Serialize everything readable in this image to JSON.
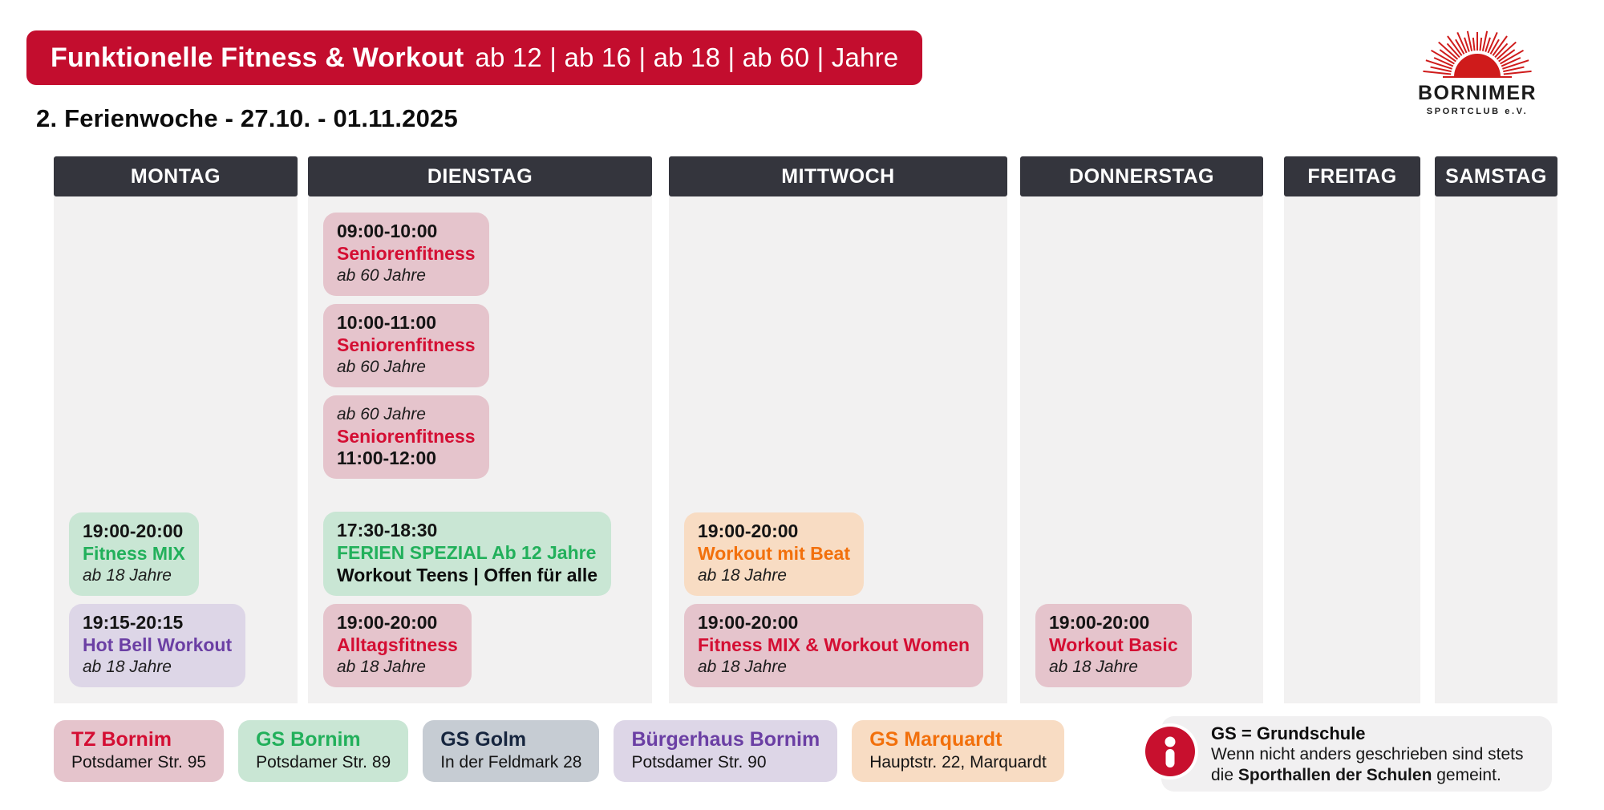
{
  "banner": {
    "title": "Funktionelle Fitness & Workout",
    "ages": "ab 12 | ab 16 | ab 18 | ab 60 | Jahre"
  },
  "subtitle": "2. Ferienwoche  - 27.10. - 01.11.2025",
  "logo": {
    "name": "BORNIMER",
    "subname": "SPORTCLUB e.V."
  },
  "colors": {
    "banner_red": "#c30d2e",
    "day_header_bg": "#34353d",
    "column_bg": "#f2f1f1",
    "info_box_bg": "#f1f0f1",
    "info_red": "#c8102e",
    "logo_red": "#cf1b1b",
    "pink": "#e5c4cc",
    "green": "#c9e6d4",
    "lavender": "#ddd6e7",
    "peach": "#f8dcc3",
    "gray": "#c6ccd3",
    "red_text": "#d40e33",
    "green_text": "#22b05b",
    "purple_text": "#6b3fa4",
    "orange_text": "#f2700c",
    "navy_text": "#17263f"
  },
  "days": [
    {
      "label": "MONTAG",
      "morning": [],
      "evening": [
        {
          "card_color": "green",
          "lines": [
            {
              "text": "19:00-20:00",
              "style": "time"
            },
            {
              "text": "Fitness MIX",
              "style": "title",
              "color": "green"
            },
            {
              "text": "ab 18 Jahre",
              "style": "sub"
            }
          ]
        },
        {
          "card_color": "lavender",
          "lines": [
            {
              "text": "19:15-20:15",
              "style": "time"
            },
            {
              "text": "Hot Bell Workout",
              "style": "title",
              "color": "purple"
            },
            {
              "text": "ab 18 Jahre",
              "style": "sub"
            }
          ]
        }
      ]
    },
    {
      "label": "DIENSTAG",
      "morning": [
        {
          "card_color": "pink",
          "lines": [
            {
              "text": "09:00-10:00",
              "style": "time"
            },
            {
              "text": "Seniorenfitness",
              "style": "title",
              "color": "red"
            },
            {
              "text": "ab 60 Jahre",
              "style": "sub"
            }
          ]
        },
        {
          "card_color": "pink",
          "lines": [
            {
              "text": "10:00-11:00",
              "style": "time"
            },
            {
              "text": "Seniorenfitness",
              "style": "title",
              "color": "red"
            },
            {
              "text": "ab 60 Jahre",
              "style": "sub"
            }
          ]
        },
        {
          "card_color": "pink",
          "lines": [
            {
              "text": "ab 60 Jahre",
              "style": "sub"
            },
            {
              "text": "Seniorenfitness",
              "style": "title",
              "color": "red"
            },
            {
              "text": "11:00-12:00",
              "style": "time"
            }
          ]
        }
      ],
      "evening": [
        {
          "card_color": "green",
          "lines": [
            {
              "text": "17:30-18:30",
              "style": "time"
            },
            {
              "text": "FERIEN SPEZIAL Ab 12 Jahre",
              "style": "title",
              "color": "green"
            },
            {
              "text": "Workout Teens | Offen für alle",
              "style": "bold"
            }
          ]
        },
        {
          "card_color": "pink",
          "lines": [
            {
              "text": "19:00-20:00",
              "style": "time"
            },
            {
              "text": "Alltagsfitness",
              "style": "title",
              "color": "red"
            },
            {
              "text": "ab 18 Jahre",
              "style": "sub"
            }
          ]
        }
      ]
    },
    {
      "label": "MITTWOCH",
      "morning": [],
      "evening": [
        {
          "card_color": "peach",
          "lines": [
            {
              "text": "19:00-20:00",
              "style": "time"
            },
            {
              "text": "Workout mit Beat",
              "style": "title",
              "color": "orange"
            },
            {
              "text": "ab 18 Jahre",
              "style": "sub"
            }
          ]
        },
        {
          "card_color": "pink",
          "lines": [
            {
              "text": "19:00-20:00",
              "style": "time"
            },
            {
              "text": "Fitness MIX & Workout Women",
              "style": "title",
              "color": "red"
            },
            {
              "text": "ab 18 Jahre",
              "style": "sub"
            }
          ]
        }
      ]
    },
    {
      "label": "DONNERSTAG",
      "morning": [],
      "evening": [
        {
          "card_color": "pink",
          "lines": [
            {
              "text": "19:00-20:00",
              "style": "time"
            },
            {
              "text": "Workout Basic",
              "style": "title",
              "color": "red"
            },
            {
              "text": "ab 18 Jahre",
              "style": "sub"
            }
          ]
        }
      ]
    },
    {
      "label": "FREITAG",
      "morning": [],
      "evening": []
    },
    {
      "label": "SAMSTAG",
      "morning": [],
      "evening": []
    }
  ],
  "legend": [
    {
      "name": "TZ Bornim",
      "address": "Potsdamer Str. 95",
      "card_color": "pink",
      "text_color": "red"
    },
    {
      "name": "GS Bornim",
      "address": "Potsdamer Str. 89",
      "card_color": "green",
      "text_color": "green"
    },
    {
      "name": "GS Golm",
      "address": "In der Feldmark 28",
      "card_color": "gray",
      "text_color": "navy"
    },
    {
      "name": "Bürgerhaus Bornim",
      "address": "Potsdamer Str. 90",
      "card_color": "lavender",
      "text_color": "purple"
    },
    {
      "name": "GS Marquardt",
      "address": "Hauptstr. 22, Marquardt",
      "card_color": "peach",
      "text_color": "orange"
    }
  ],
  "info": {
    "title": "GS = Grundschule",
    "line2": "Wenn nicht anders geschrieben sind stets",
    "line3_prefix": "die ",
    "line3_bold": "Sporthallen der Schulen",
    "line3_suffix": " gemeint."
  }
}
